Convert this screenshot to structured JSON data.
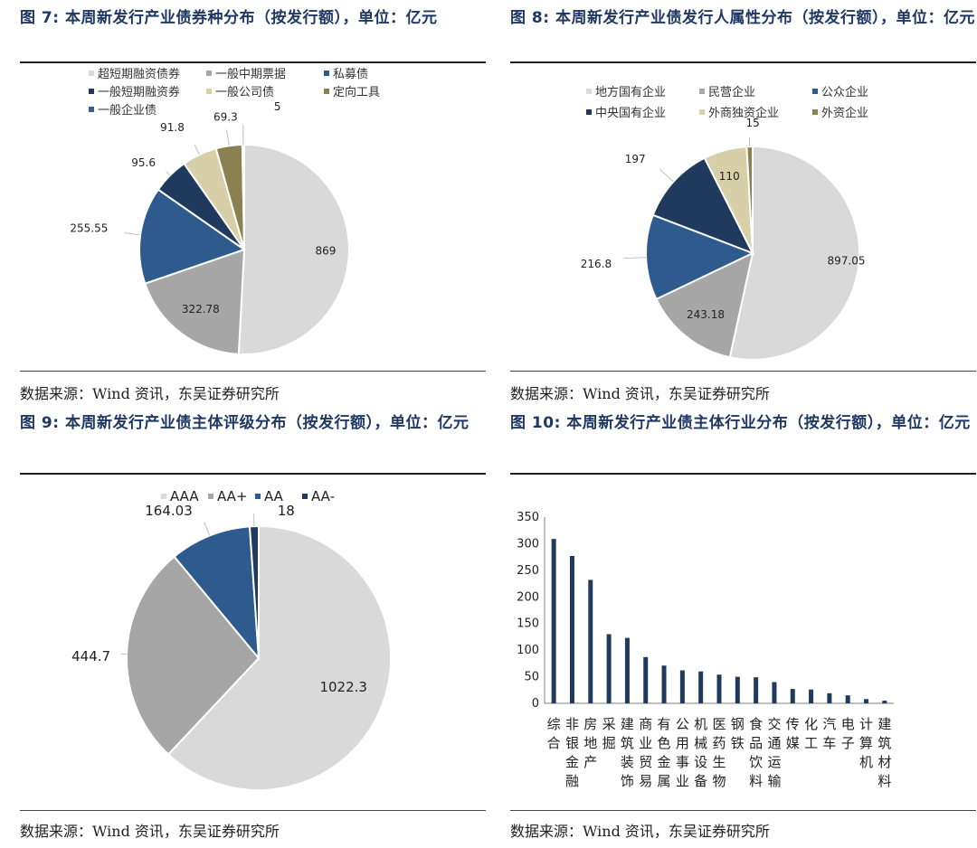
{
  "panels": [
    {
      "title": "图 7:  本周新发行产业债券种分布（按发行额），单位：亿元",
      "source": "数据来源：Wind 资讯，东吴证券研究所"
    },
    {
      "title": "图 8:  本周新发行产业债发行人属性分布（按发行额），单位：亿元",
      "source": "数据来源：Wind 资讯，东吴证券研究所"
    },
    {
      "title": "图 9:  本周新发行产业债主体评级分布（按发行额），单位：亿元",
      "source": "数据来源：Wind 资讯，东吴证券研究所"
    },
    {
      "title": "图 10:  本周新发行产业债主体行业分布（按发行额），单位：亿元",
      "source": "数据来源：Wind 资讯，东吴证券研究所"
    }
  ],
  "chart_data": [
    {
      "type": "pie",
      "title": "图 7:  本周新发行产业债券种分布（按发行额），单位：亿元",
      "legend_position": "top",
      "slices": [
        {
          "name": "超短期融资债券",
          "value": 869,
          "label": "869",
          "color": "#d9d9d9"
        },
        {
          "name": "一般中期票据",
          "value": 322.78,
          "label": "322.78",
          "color": "#a6a6a6"
        },
        {
          "name": "私募债",
          "value": 255.55,
          "label": "255.55",
          "color": "#2e5a8e"
        },
        {
          "name": "一般短期融资券",
          "value": 95.6,
          "label": "95.6",
          "color": "#1f3a5c"
        },
        {
          "name": "一般公司债",
          "value": 91.8,
          "label": "91.8",
          "color": "#d6cfa8"
        },
        {
          "name": "定向工具",
          "value": 69.3,
          "label": "69.3",
          "color": "#8b8150"
        },
        {
          "name": "一般企业债",
          "value": 5,
          "label": "5",
          "color": "#3a5f8f"
        }
      ]
    },
    {
      "type": "pie",
      "title": "图 8:  本周新发行产业债发行人属性分布（按发行额），单位：亿元",
      "legend_position": "top",
      "slices": [
        {
          "name": "地方国有企业",
          "value": 897.05,
          "label": "897.05",
          "color": "#d9d9d9"
        },
        {
          "name": "民营企业",
          "value": 243.18,
          "label": "243.18",
          "color": "#a6a6a6"
        },
        {
          "name": "公众企业",
          "value": 216.8,
          "label": "216.8",
          "color": "#2e5a8e"
        },
        {
          "name": "中央国有企业",
          "value": 197,
          "label": "197",
          "color": "#1f3a5c"
        },
        {
          "name": "外商独资企业",
          "value": 110,
          "label": "110",
          "color": "#d6cfa8"
        },
        {
          "name": "外资企业",
          "value": 15,
          "label": "15",
          "color": "#8b8150"
        }
      ]
    },
    {
      "type": "pie",
      "title": "图 9:  本周新发行产业债主体评级分布（按发行额），单位：亿元",
      "legend_position": "top",
      "slices": [
        {
          "name": "AAA",
          "value": 1022.3,
          "label": "1022.3",
          "color": "#d9d9d9"
        },
        {
          "name": "AA+",
          "value": 444.7,
          "label": "444.7",
          "color": "#a6a6a6"
        },
        {
          "name": "AA",
          "value": 164.03,
          "label": "164.03",
          "color": "#2e5a8e"
        },
        {
          "name": "AA-",
          "value": 18,
          "label": "18",
          "color": "#1f3a5c"
        }
      ]
    },
    {
      "type": "bar",
      "title": "图 10:  本周新发行产业债主体行业分布（按发行额），单位：亿元",
      "color": "#1f3a5c",
      "ylim": [
        0,
        350
      ],
      "yticks": [
        0,
        50,
        100,
        150,
        200,
        250,
        300,
        350
      ],
      "categories": [
        "综合",
        "非银金融",
        "房地产",
        "采掘",
        "建筑装饰",
        "商业贸易",
        "有色金属",
        "公用事业",
        "机械设备",
        "医药生物",
        "钢铁",
        "食品饮料",
        "交通运输",
        "传媒",
        "化工",
        "汽车",
        "电子",
        "计算机",
        "建筑材料"
      ],
      "values": [
        309,
        277,
        232,
        130,
        123,
        87,
        71,
        62,
        60,
        54,
        50,
        49,
        40,
        27,
        26,
        19,
        15,
        8,
        5
      ]
    }
  ]
}
